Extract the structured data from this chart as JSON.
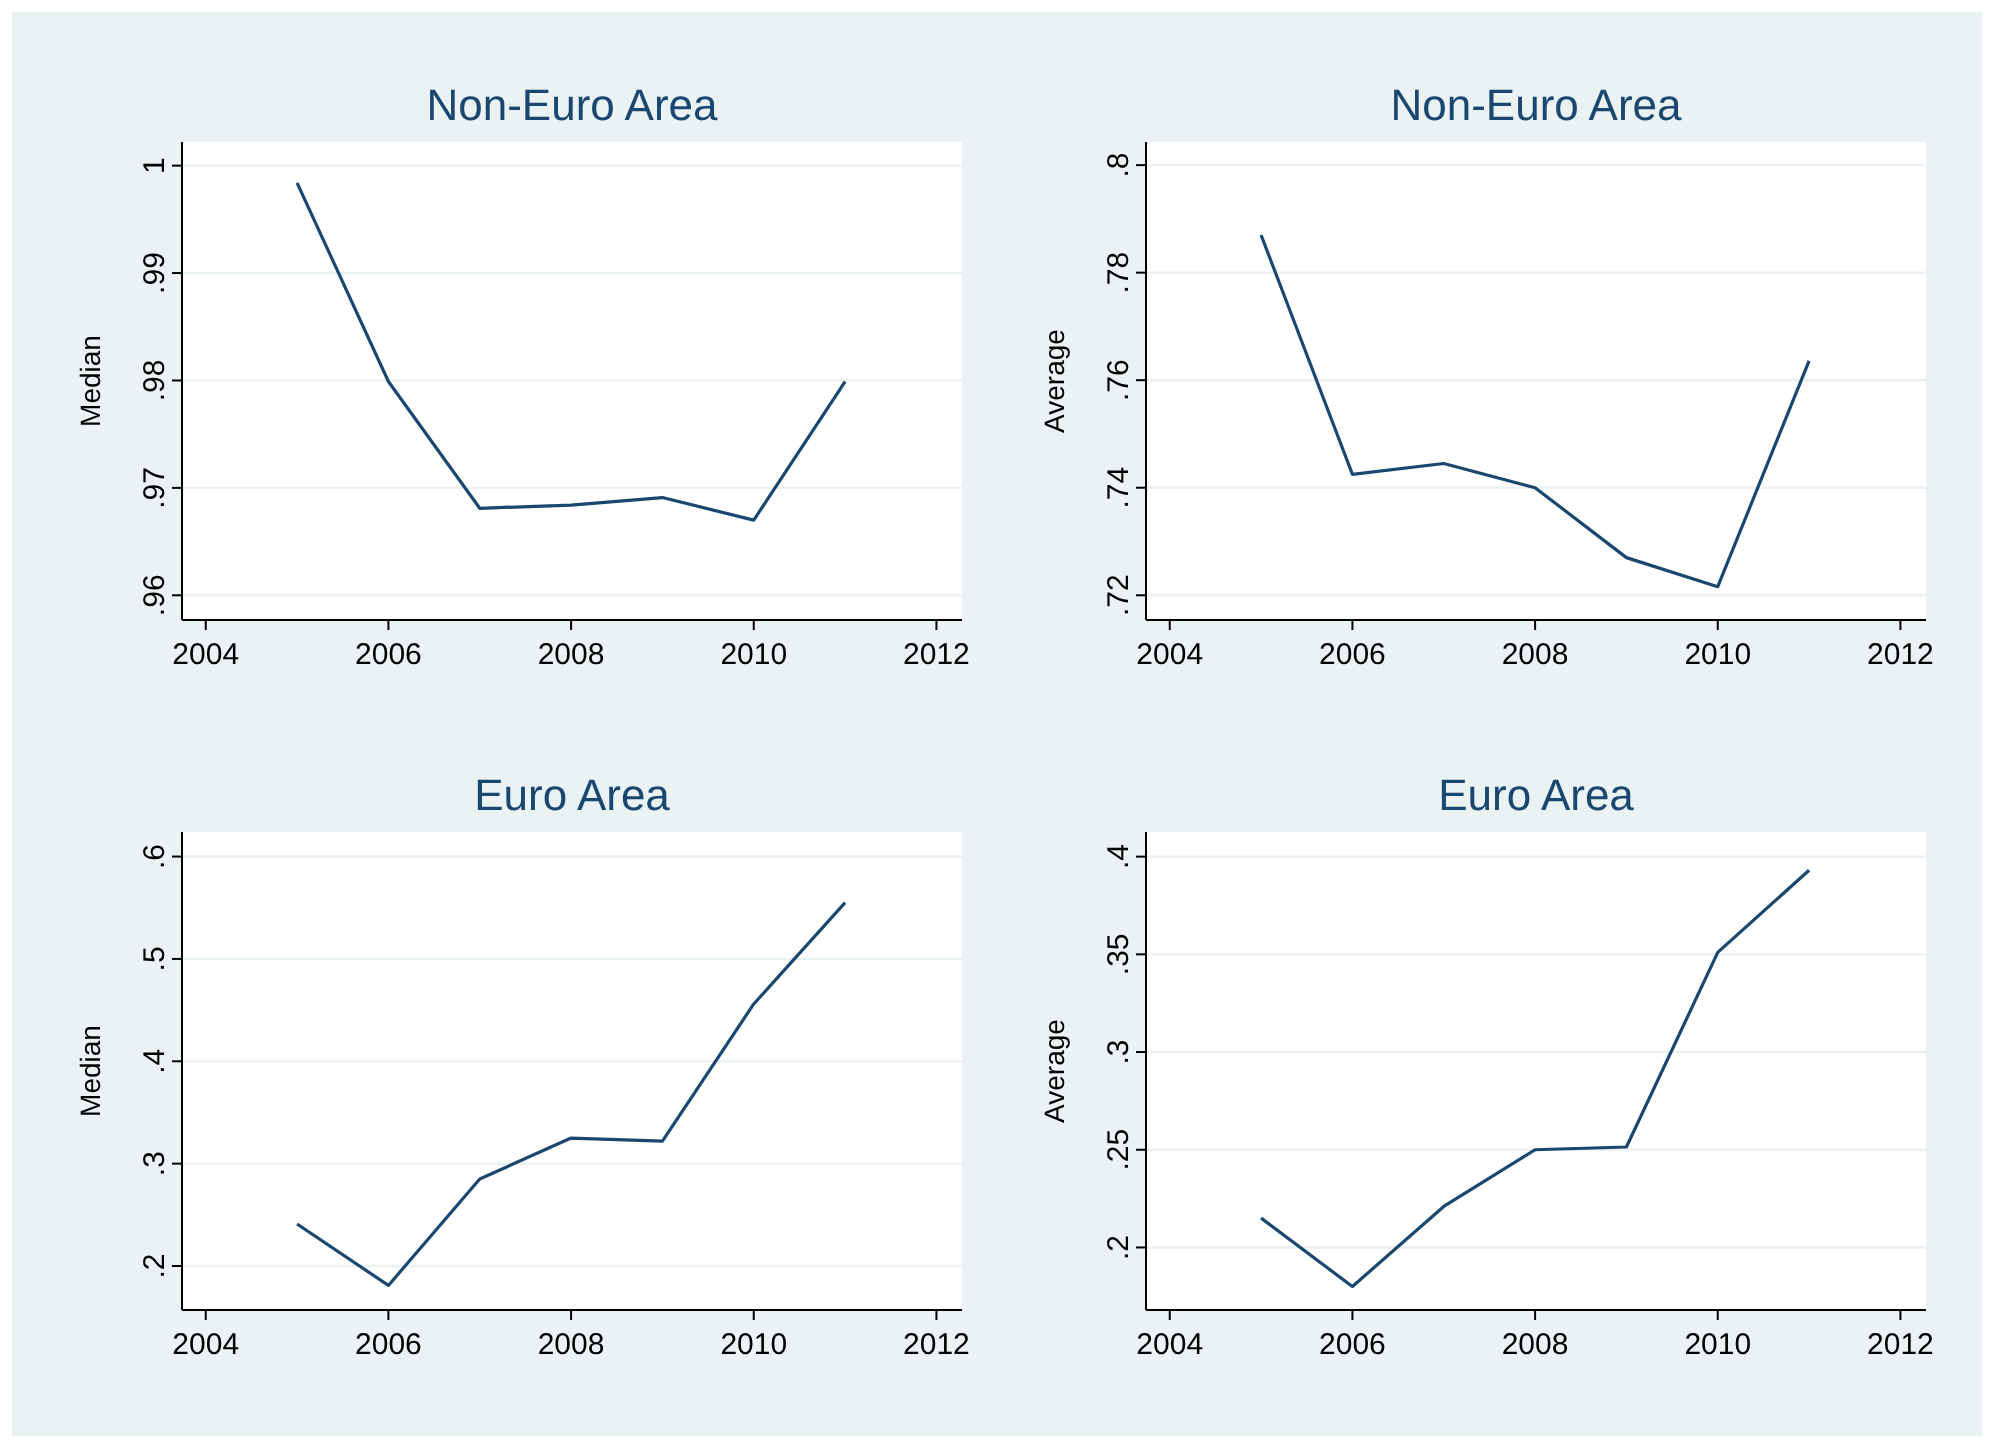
{
  "chart_data": [
    {
      "type": "line",
      "title": "Non-Euro Area",
      "ylabel": "Median",
      "x": [
        2005,
        2006,
        2007,
        2008,
        2009,
        2010,
        2011
      ],
      "xlim": [
        2003.74,
        2012.28
      ],
      "xticks": [
        2004,
        2006,
        2008,
        2010,
        2012
      ],
      "ylim": [
        0.9577,
        1.0022
      ],
      "yticks": [
        {
          "value": 0.96,
          "label": ".96"
        },
        {
          "value": 0.97,
          "label": ".97"
        },
        {
          "value": 0.98,
          "label": ".98"
        },
        {
          "value": 0.99,
          "label": ".99"
        },
        1
      ],
      "grid": "y",
      "series": [
        {
          "color": "#1a476f",
          "values": [
            0.9984,
            0.9799,
            0.9681,
            0.9684,
            0.9691,
            0.967,
            0.9799
          ]
        }
      ]
    },
    {
      "type": "line",
      "title": "Non-Euro Area",
      "ylabel": "Average",
      "x": [
        2005,
        2006,
        2007,
        2008,
        2009,
        2010,
        2011
      ],
      "xlim": [
        2003.74,
        2012.28
      ],
      "xticks": [
        2004,
        2006,
        2008,
        2010,
        2012
      ],
      "ylim": [
        0.7154,
        0.8043
      ],
      "yticks": [
        {
          "value": 0.72,
          "label": ".72"
        },
        {
          "value": 0.74,
          "label": ".74"
        },
        {
          "value": 0.76,
          "label": ".76"
        },
        {
          "value": 0.78,
          "label": ".78"
        },
        {
          "value": 0.8,
          "label": ".8"
        }
      ],
      "grid": "y",
      "series": [
        {
          "color": "#1a476f",
          "values": [
            0.787,
            0.7425,
            0.7445,
            0.74,
            0.727,
            0.7216,
            0.7636
          ]
        }
      ]
    },
    {
      "type": "line",
      "title": "Euro Area",
      "ylabel": "Median",
      "x": [
        2005,
        2006,
        2007,
        2008,
        2009,
        2010,
        2011
      ],
      "xlim": [
        2003.74,
        2012.28
      ],
      "xticks": [
        2004,
        2006,
        2008,
        2010,
        2012
      ],
      "ylim": [
        0.157,
        0.624
      ],
      "yticks": [
        {
          "value": 0.2,
          "label": ".2"
        },
        {
          "value": 0.3,
          "label": ".3"
        },
        {
          "value": 0.4,
          "label": ".4"
        },
        {
          "value": 0.5,
          "label": ".5"
        },
        {
          "value": 0.6,
          "label": ".6"
        }
      ],
      "grid": "y",
      "series": [
        {
          "color": "#1a476f",
          "values": [
            0.241,
            0.181,
            0.285,
            0.325,
            0.322,
            0.456,
            0.555
          ]
        }
      ]
    },
    {
      "type": "line",
      "title": "Euro Area",
      "ylabel": "Average",
      "x": [
        2005,
        2006,
        2007,
        2008,
        2009,
        2010,
        2011
      ],
      "xlim": [
        2003.74,
        2012.28
      ],
      "xticks": [
        2004,
        2006,
        2008,
        2010,
        2012
      ],
      "ylim": [
        0.168,
        0.4126
      ],
      "yticks": [
        {
          "value": 0.2,
          "label": ".2"
        },
        {
          "value": 0.25,
          "label": ".25"
        },
        {
          "value": 0.3,
          "label": ".3"
        },
        {
          "value": 0.35,
          "label": ".35"
        },
        {
          "value": 0.4,
          "label": ".4"
        }
      ],
      "grid": "y",
      "series": [
        {
          "color": "#1a476f",
          "values": [
            0.215,
            0.18,
            0.221,
            0.25,
            0.2514,
            0.351,
            0.393
          ]
        }
      ]
    }
  ]
}
